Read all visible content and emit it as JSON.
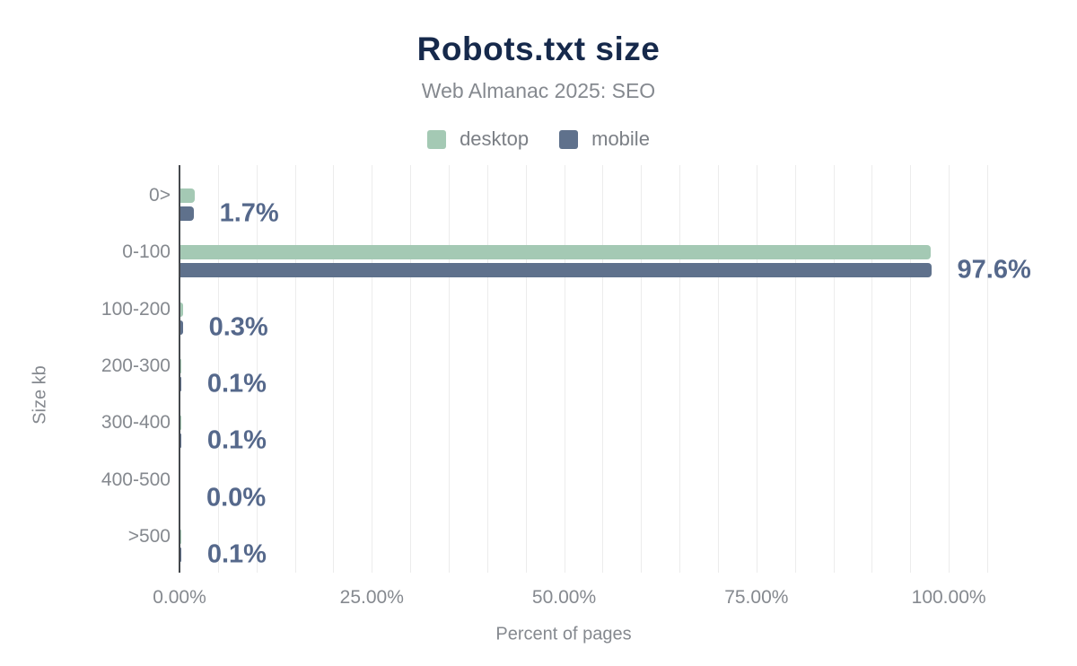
{
  "chart_data": {
    "type": "bar",
    "orientation": "horizontal",
    "title": "Robots.txt size",
    "subtitle": "Web Almanac 2025: SEO",
    "xlabel": "Percent of pages",
    "ylabel": "Size kb",
    "categories": [
      "0>",
      "0-100",
      "100-200",
      "200-300",
      "300-400",
      "400-500",
      ">500"
    ],
    "series": [
      {
        "name": "desktop",
        "color": "#a4c9b4",
        "values": [
          1.9,
          97.5,
          0.4,
          0.1,
          0.1,
          0.0,
          0.1
        ]
      },
      {
        "name": "mobile",
        "color": "#5f718c",
        "values": [
          1.7,
          97.6,
          0.3,
          0.1,
          0.1,
          0.0,
          0.1
        ]
      }
    ],
    "value_labels": [
      "1.7%",
      "97.6%",
      "0.3%",
      "0.1%",
      "0.1%",
      "0.0%",
      "0.1%"
    ],
    "x_ticks": [
      {
        "pct": 0,
        "label": "0.00%"
      },
      {
        "pct": 25,
        "label": "25.00%"
      },
      {
        "pct": 50,
        "label": "50.00%"
      },
      {
        "pct": 75,
        "label": "75.00%"
      },
      {
        "pct": 100,
        "label": "100.00%"
      }
    ],
    "xlim": [
      0,
      108.7
    ],
    "grid": "vertical gridlines every 5%",
    "legend_position": "top",
    "colors": {
      "title": "#16294b",
      "muted_text": "#85898f",
      "value_label": "#55688b",
      "gridline": "#ececec",
      "axis_line": "#45484d",
      "background": "#ffffff"
    }
  }
}
